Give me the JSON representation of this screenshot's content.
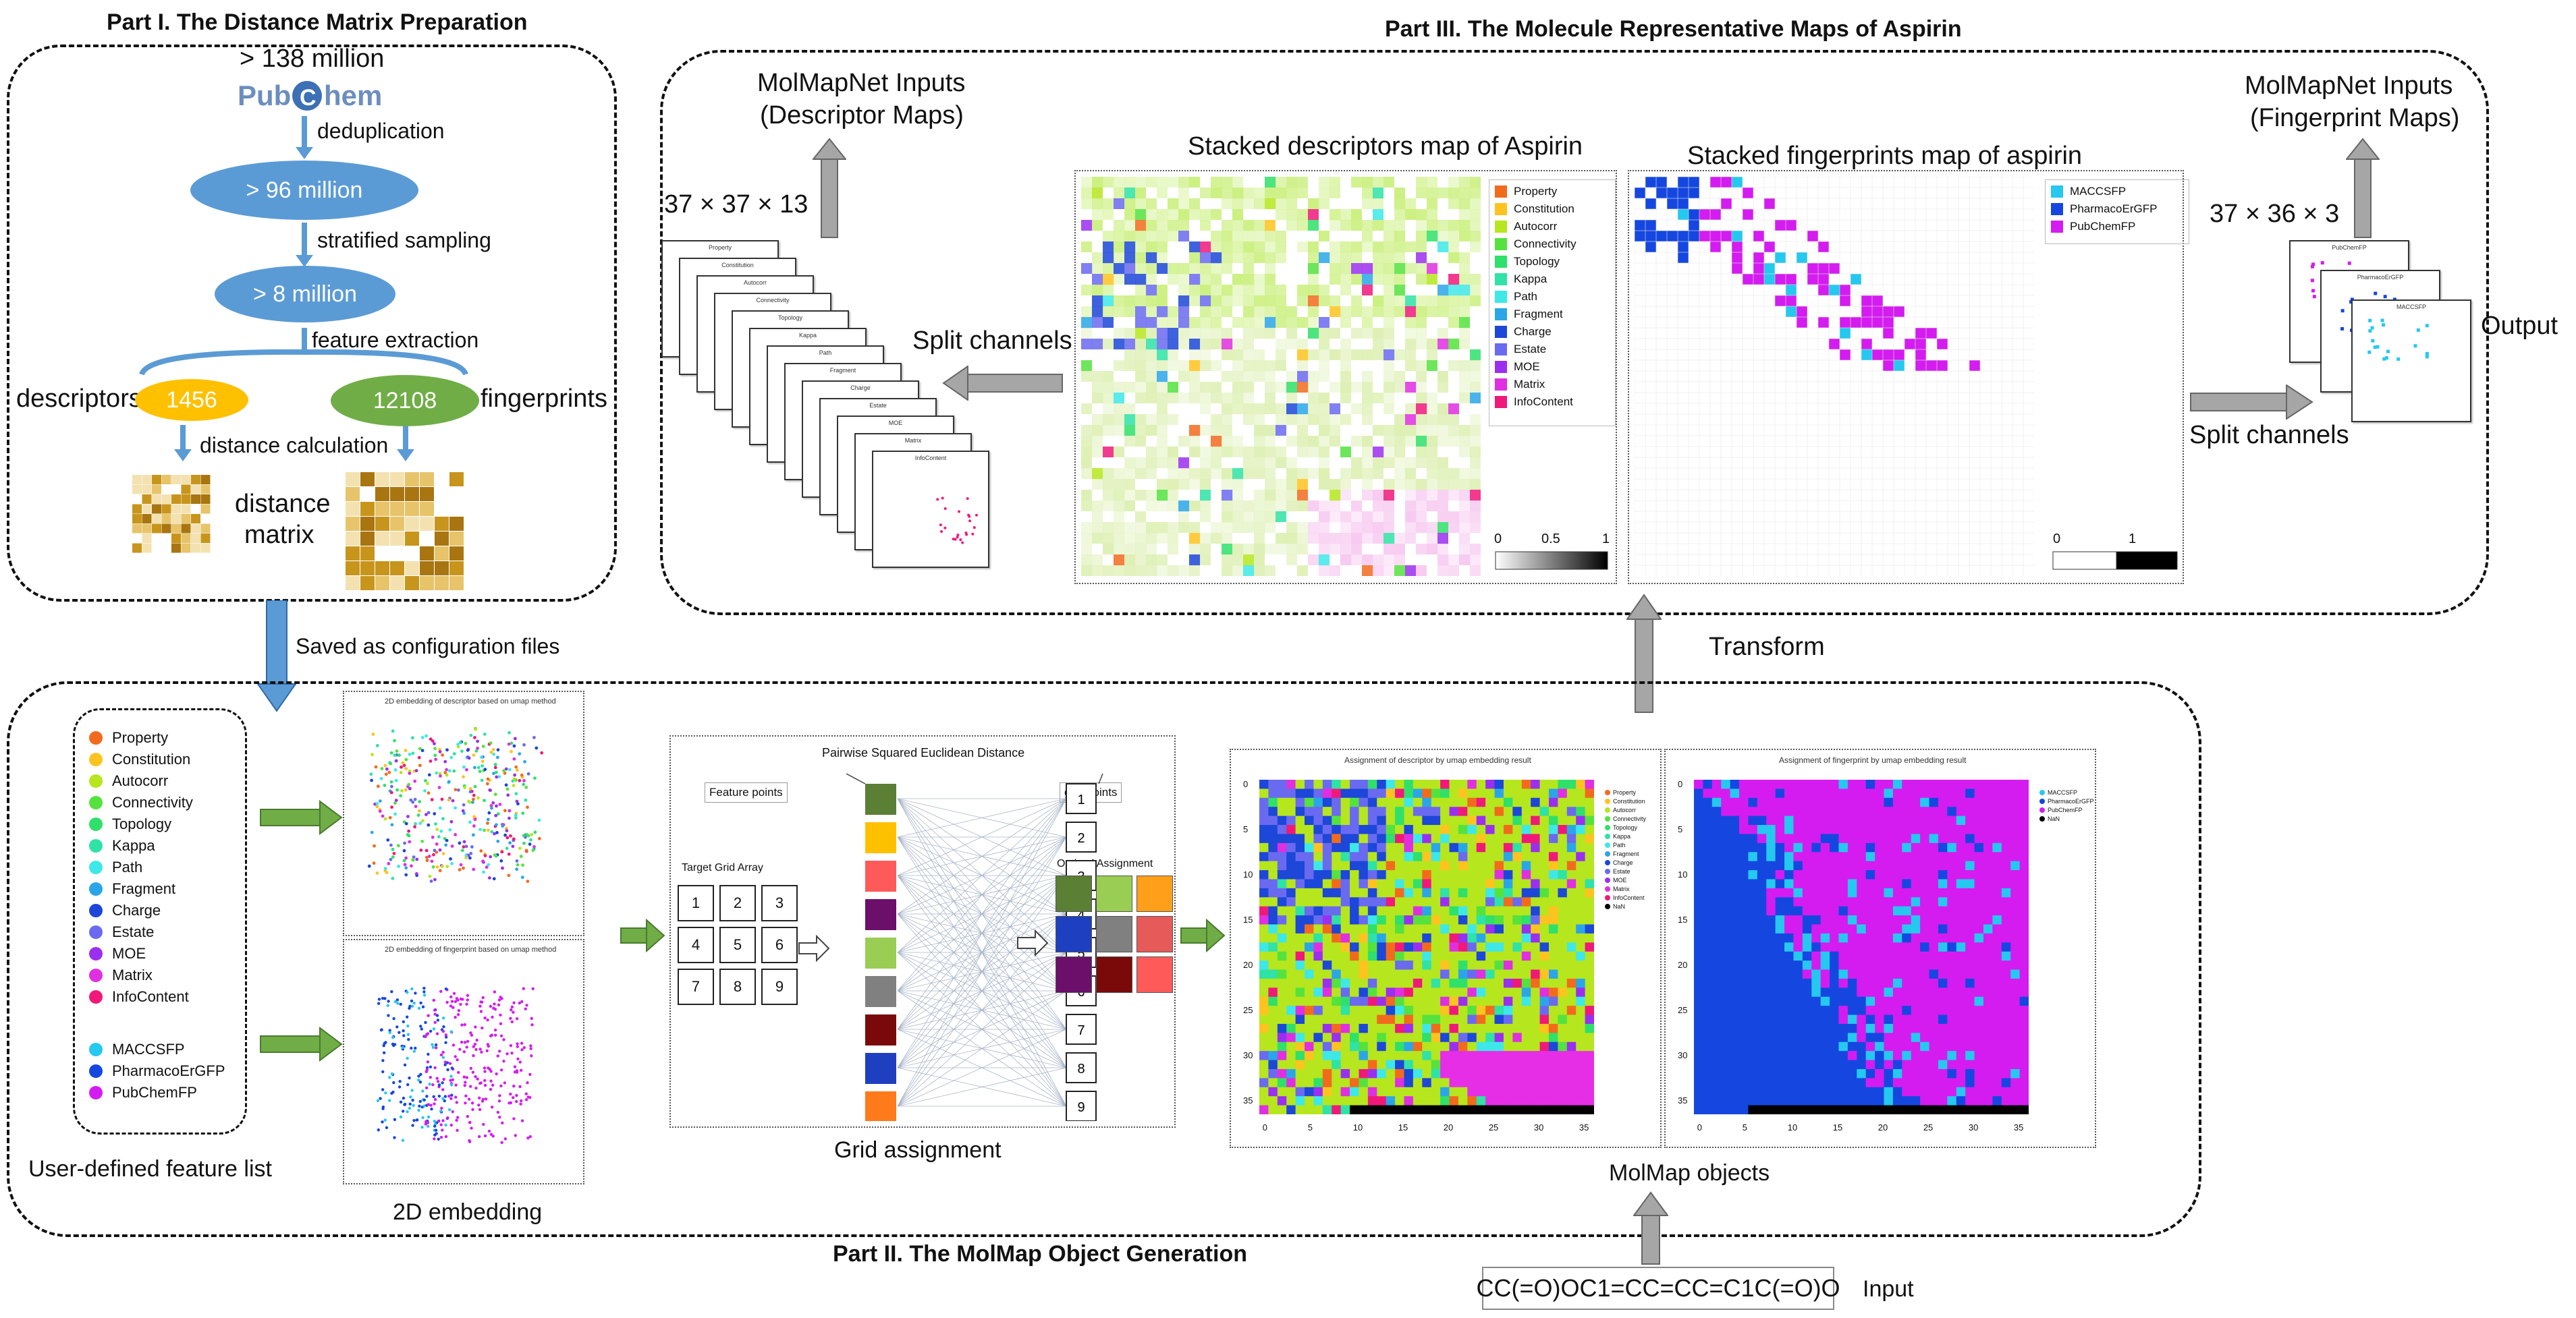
{
  "part1": {
    "title": "Part I. The Distance Matrix Preparation",
    "count_top": "> 138 million",
    "logo_text": "PubChem",
    "step1": "deduplication",
    "ellipse1": "> 96 million",
    "step2": "stratified sampling",
    "ellipse2": "> 8 million",
    "step3": "feature extraction",
    "descriptors_label": "descriptors",
    "descriptors_count": "1456",
    "fingerprints_count": "12108",
    "fingerprints_label": "fingerprints",
    "step4": "distance calculation",
    "matrix_label_1": "distance",
    "matrix_label_2": "matrix",
    "colors": {
      "blue": "#5b9bd5",
      "yellow": "#ffc000",
      "green": "#70ad47",
      "gold": "#d4a52a"
    }
  },
  "saved_label": "Saved as configuration files",
  "part2": {
    "title": "Part II. The MolMap Object Generation",
    "feature_list_caption": "User-defined feature list",
    "descriptor_features": [
      {
        "name": "Property",
        "color": "#f26b1d"
      },
      {
        "name": "Constitution",
        "color": "#ffc31f"
      },
      {
        "name": "Autocorr",
        "color": "#b6e61d"
      },
      {
        "name": "Connectivity",
        "color": "#55e23e"
      },
      {
        "name": "Topology",
        "color": "#2fe06a"
      },
      {
        "name": "Kappa",
        "color": "#2fe2a6"
      },
      {
        "name": "Path",
        "color": "#3ee8e8"
      },
      {
        "name": "Fragment",
        "color": "#2aa6e8"
      },
      {
        "name": "Charge",
        "color": "#1c47d8"
      },
      {
        "name": "Estate",
        "color": "#6a6af0"
      },
      {
        "name": "MOE",
        "color": "#9b2ff0"
      },
      {
        "name": "Matrix",
        "color": "#e02fe0"
      },
      {
        "name": "InfoContent",
        "color": "#f0197a"
      }
    ],
    "fingerprint_features": [
      {
        "name": "MACCSFP",
        "color": "#25c8ee"
      },
      {
        "name": "PharmacoErGFP",
        "color": "#1547e0"
      },
      {
        "name": "PubChemFP",
        "color": "#d41cf0"
      }
    ],
    "embedding_caption": "2D embedding",
    "embed1_title": "2D embedding of descriptor based on umap method",
    "embed2_title": "2D embedding of fingerprint based on umap method",
    "grid": {
      "title": "Pairwise Squared Euclidean Distance",
      "feature_points": "Feature points",
      "grid_points": "grid points",
      "target_label": "Target Grid Array",
      "optimal_label": "Optimal Assignment",
      "numbers": [
        "1",
        "2",
        "3",
        "4",
        "5",
        "6",
        "7",
        "8",
        "9"
      ],
      "caption": "Grid assignment"
    },
    "molmap_caption": "MolMap objects",
    "map1_title": "Assignment of descriptor by umap embedding result",
    "map2_title": "Assignment of fingerprint by umap embedding result",
    "axis_ticks": [
      "0",
      "5",
      "10",
      "15",
      "20",
      "25",
      "30",
      "35"
    ],
    "map1_legend": [
      "Property",
      "Constitution",
      "Autocorr",
      "Connectivity",
      "Topology",
      "Kappa",
      "Path",
      "Fragment",
      "Charge",
      "Estate",
      "MOE",
      "Matrix",
      "InfoContent",
      "NaN"
    ],
    "map2_legend": [
      "MACCSFP",
      "PharmacoErGFP",
      "PubChemFP",
      "NaN"
    ],
    "input_smiles": "CC(=O)OC1=CC=CC=C1C(=O)O",
    "input_label": "Input"
  },
  "part3": {
    "title": "Part III.  The Molecule Representative Maps of Aspirin",
    "inputs_desc_1": "MolMapNet Inputs",
    "inputs_desc_2": "(Descriptor Maps)",
    "desc_dims": "37 × 37 × 13",
    "split_label": "Split channels",
    "desc_map_title": "Stacked descriptors map of Aspirin",
    "fp_map_title": "Stacked fingerprints map of aspirin",
    "desc_legend": [
      "Property",
      "Constitution",
      "Autocorr",
      "Connectivity",
      "Topology",
      "Kappa",
      "Path",
      "Fragment",
      "Charge",
      "Estate",
      "MOE",
      "Matrix",
      "InfoContent"
    ],
    "fp_legend": [
      "MACCSFP",
      "PharmacoErGFP",
      "PubChemFP"
    ],
    "cbar1": [
      "0",
      "0.5",
      "1"
    ],
    "cbar2": [
      "0",
      "1"
    ],
    "inputs_fp_1": "MolMapNet Inputs",
    "inputs_fp_2": "(Fingerprint Maps)",
    "fp_dims": "37 × 36 × 3",
    "output_label": "Output",
    "split_label2": "Split channels",
    "transform_label": "Transform",
    "sheet_labels": [
      "Property",
      "Constitution",
      "Autocorr",
      "Connectivity",
      "Topology",
      "Kappa",
      "Path",
      "Fragment",
      "Charge",
      "Estate",
      "MOE",
      "Matrix",
      "InfoContent"
    ],
    "fp_sheet_labels": [
      "PubChemFP",
      "PharmacoErGFP",
      "MACCSFP"
    ]
  }
}
